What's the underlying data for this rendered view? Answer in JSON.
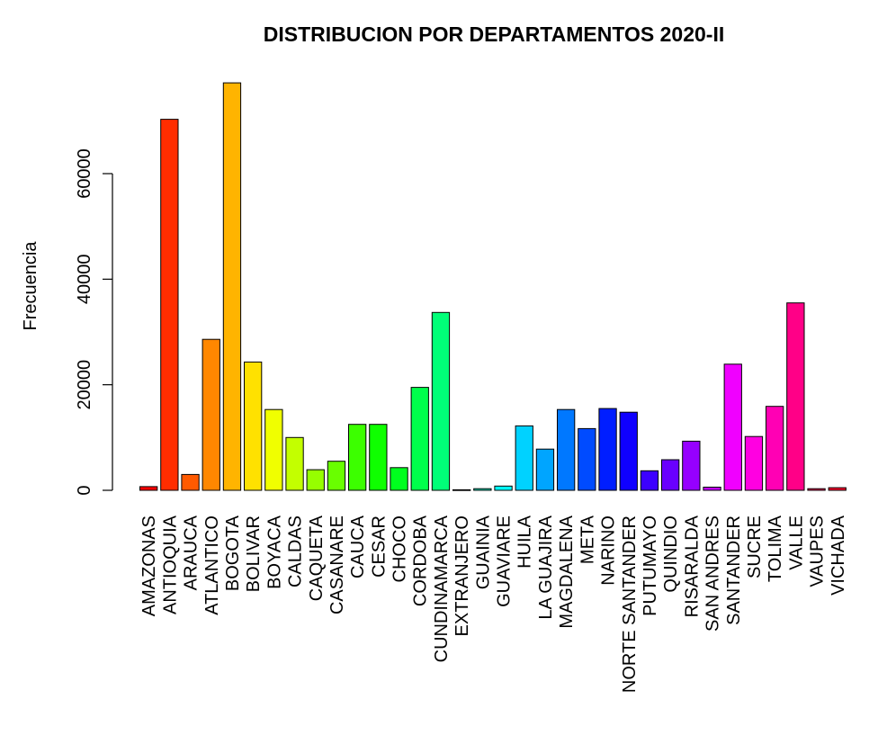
{
  "chart_data": {
    "type": "bar",
    "title": "DISTRIBUCION POR DEPARTAMENTOS 2020-II",
    "xlabel": "",
    "ylabel": "Frecuencia",
    "ylim": [
      0,
      78000
    ],
    "yticks": [
      0,
      20000,
      40000,
      60000
    ],
    "grid": false,
    "categories": [
      "AMAZONAS",
      "ANTIOQUIA",
      "ARAUCA",
      "ATLANTICO",
      "BOGOTA",
      "BOLIVAR",
      "BOYACA",
      "CALDAS",
      "CAQUETA",
      "CASANARE",
      "CAUCA",
      "CESAR",
      "CHOCO",
      "CORDOBA",
      "CUNDINAMARCA",
      "EXTRANJERO",
      "GUAINIA",
      "GUAVIARE",
      "HUILA",
      "LA GUAJIRA",
      "MAGDALENA",
      "META",
      "NARINO",
      "NORTE SANTANDER",
      "PUTUMAYO",
      "QUINDIO",
      "RISARALDA",
      "SAN ANDRES",
      "SANTANDER",
      "SUCRE",
      "TOLIMA",
      "VALLE",
      "VAUPES",
      "VICHADA"
    ],
    "values": [
      700,
      70300,
      3000,
      28600,
      77200,
      24300,
      15300,
      10000,
      3900,
      5500,
      12500,
      12500,
      4300,
      19500,
      33700,
      100,
      300,
      800,
      12200,
      7800,
      15300,
      11700,
      15500,
      14800,
      3700,
      5800,
      9300,
      600,
      23900,
      10200,
      15900,
      35500,
      300,
      500
    ],
    "colors": [
      "#FF0000",
      "#FF2D00",
      "#FF5A00",
      "#FF8700",
      "#FFB400",
      "#FFE100",
      "#F0FF00",
      "#C3FF00",
      "#96FF00",
      "#69FF00",
      "#3CFF00",
      "#0FFF00",
      "#00FF1E",
      "#00FF4B",
      "#00FF78",
      "#00FFA5",
      "#00FFD2",
      "#00FFFF",
      "#00D2FF",
      "#00A5FF",
      "#0078FF",
      "#004BFF",
      "#001EFF",
      "#0F00FF",
      "#3C00FF",
      "#6900FF",
      "#9600FF",
      "#C300FF",
      "#F000FF",
      "#FF00E1",
      "#FF00B4",
      "#FF0087",
      "#FF005A",
      "#FF002D"
    ]
  }
}
